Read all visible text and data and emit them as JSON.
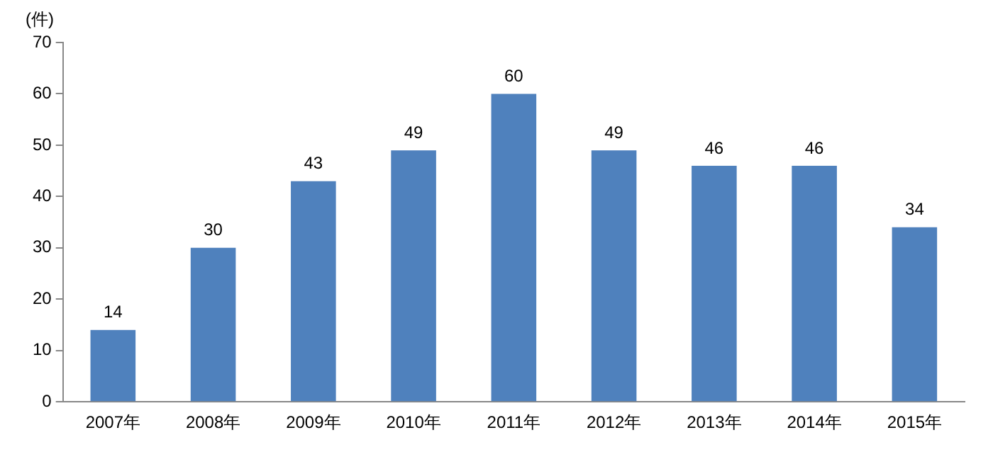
{
  "chart_data": {
    "type": "bar",
    "ylabel": "(件)",
    "categories": [
      "2007年",
      "2008年",
      "2009年",
      "2010年",
      "2011年",
      "2012年",
      "2013年",
      "2014年",
      "2015年"
    ],
    "values": [
      14,
      30,
      43,
      49,
      60,
      49,
      46,
      46,
      34
    ],
    "color": "#4f81bd",
    "ylim": [
      0,
      70
    ],
    "yticks": [
      0,
      10,
      20,
      30,
      40,
      50,
      60,
      70
    ],
    "grid": false,
    "data_labels": true,
    "legend": false
  }
}
